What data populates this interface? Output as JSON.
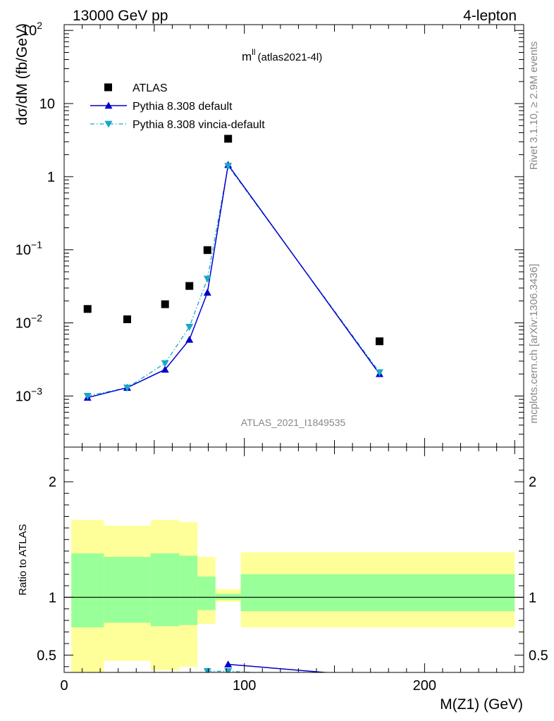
{
  "header": {
    "left": "13000 GeV pp",
    "right": "4-lepton"
  },
  "side": {
    "rivet": "Rivet 3.1.10, ≥ 2.9M events",
    "mcplots": "mcplots.cern.ch [arXiv:1306.3436]"
  },
  "chart_data": [
    {
      "type": "scatter",
      "title": "m",
      "title_sup": "ll",
      "title_note": "(atlas2021-4l)",
      "ylabel": "dσ/dM (fb/GeV)",
      "watermark": "ATLAS_2021_I1849535",
      "yscale": "log",
      "ylim": [
        0.0002,
        120
      ],
      "xlim": [
        0,
        255
      ],
      "yticks": [
        {
          "v": 0.001,
          "base": "10",
          "exp": "−3"
        },
        {
          "v": 0.01,
          "base": "10",
          "exp": "−2"
        },
        {
          "v": 0.1,
          "base": "10",
          "exp": "−1"
        },
        {
          "v": 1,
          "text": "1"
        },
        {
          "v": 10,
          "text": "10"
        },
        {
          "v": 100,
          "base": "10",
          "exp": "2"
        }
      ],
      "legend_position": "top-left",
      "series": [
        {
          "name": "ATLAS",
          "marker": "square",
          "color": "#000000",
          "x": [
            13,
            35,
            56,
            69.5,
            79.5,
            91,
            175
          ],
          "y": [
            0.0155,
            0.0112,
            0.018,
            0.032,
            0.099,
            3.3,
            0.0056
          ]
        },
        {
          "name": "Pythia 8.308 default",
          "marker": "triangle-up",
          "color": "#0000cc",
          "line": "solid",
          "x": [
            13,
            35,
            56,
            69.5,
            79.5,
            91,
            175
          ],
          "y": [
            0.00095,
            0.0013,
            0.0023,
            0.0059,
            0.026,
            1.45,
            0.002
          ]
        },
        {
          "name": "Pythia 8.308 vincia-default",
          "marker": "triangle-down",
          "color": "#1aa7c8",
          "line": "dashdot",
          "x": [
            13,
            35,
            56,
            69.5,
            79.5,
            91,
            175
          ],
          "y": [
            0.001,
            0.0013,
            0.0028,
            0.0088,
            0.04,
            1.4,
            0.0021
          ]
        }
      ]
    },
    {
      "type": "area",
      "ylabel": "Ratio to ATLAS",
      "xlabel": "M(Z1) (GeV)",
      "xlim": [
        0,
        255
      ],
      "ylim": [
        0.35,
        2.3
      ],
      "xticks": [
        0,
        100,
        200
      ],
      "yticks": [
        0.5,
        1,
        2
      ],
      "reference_line": 1,
      "bands": [
        {
          "x": [
            4,
            22
          ],
          "outer": [
            0.3,
            1.67
          ],
          "inner": [
            0.74,
            1.38
          ]
        },
        {
          "x": [
            22,
            48
          ],
          "outer": [
            0.45,
            1.62
          ],
          "inner": [
            0.78,
            1.35
          ]
        },
        {
          "x": [
            48,
            64
          ],
          "outer": [
            0.37,
            1.67
          ],
          "inner": [
            0.75,
            1.38
          ]
        },
        {
          "x": [
            64,
            74
          ],
          "outer": [
            0.4,
            1.65
          ],
          "inner": [
            0.76,
            1.36
          ]
        },
        {
          "x": [
            74,
            84
          ],
          "outer": [
            0.77,
            1.35
          ],
          "inner": [
            0.89,
            1.18
          ]
        },
        {
          "x": [
            84,
            98
          ],
          "outer": [
            0.96,
            1.07
          ],
          "inner": [
            0.98,
            1.03
          ]
        },
        {
          "x": [
            98,
            250
          ],
          "outer": [
            0.74,
            1.39
          ],
          "inner": [
            0.88,
            1.2
          ]
        }
      ],
      "series": [
        {
          "name": "Pythia 8.308 default",
          "color": "#0000cc",
          "marker": "triangle-up",
          "x": [
            91,
            175
          ],
          "y": [
            0.42,
            0.31
          ],
          "marker_visible": [
            true,
            false
          ]
        },
        {
          "name": "Pythia 8.308 vincia-default",
          "color": "#1aa7c8",
          "marker": "triangle-down",
          "x": [
            79.5,
            91,
            175
          ],
          "y": [
            0.36,
            0.36,
            0.3
          ],
          "marker_visible": [
            true,
            true,
            false
          ]
        }
      ]
    }
  ]
}
